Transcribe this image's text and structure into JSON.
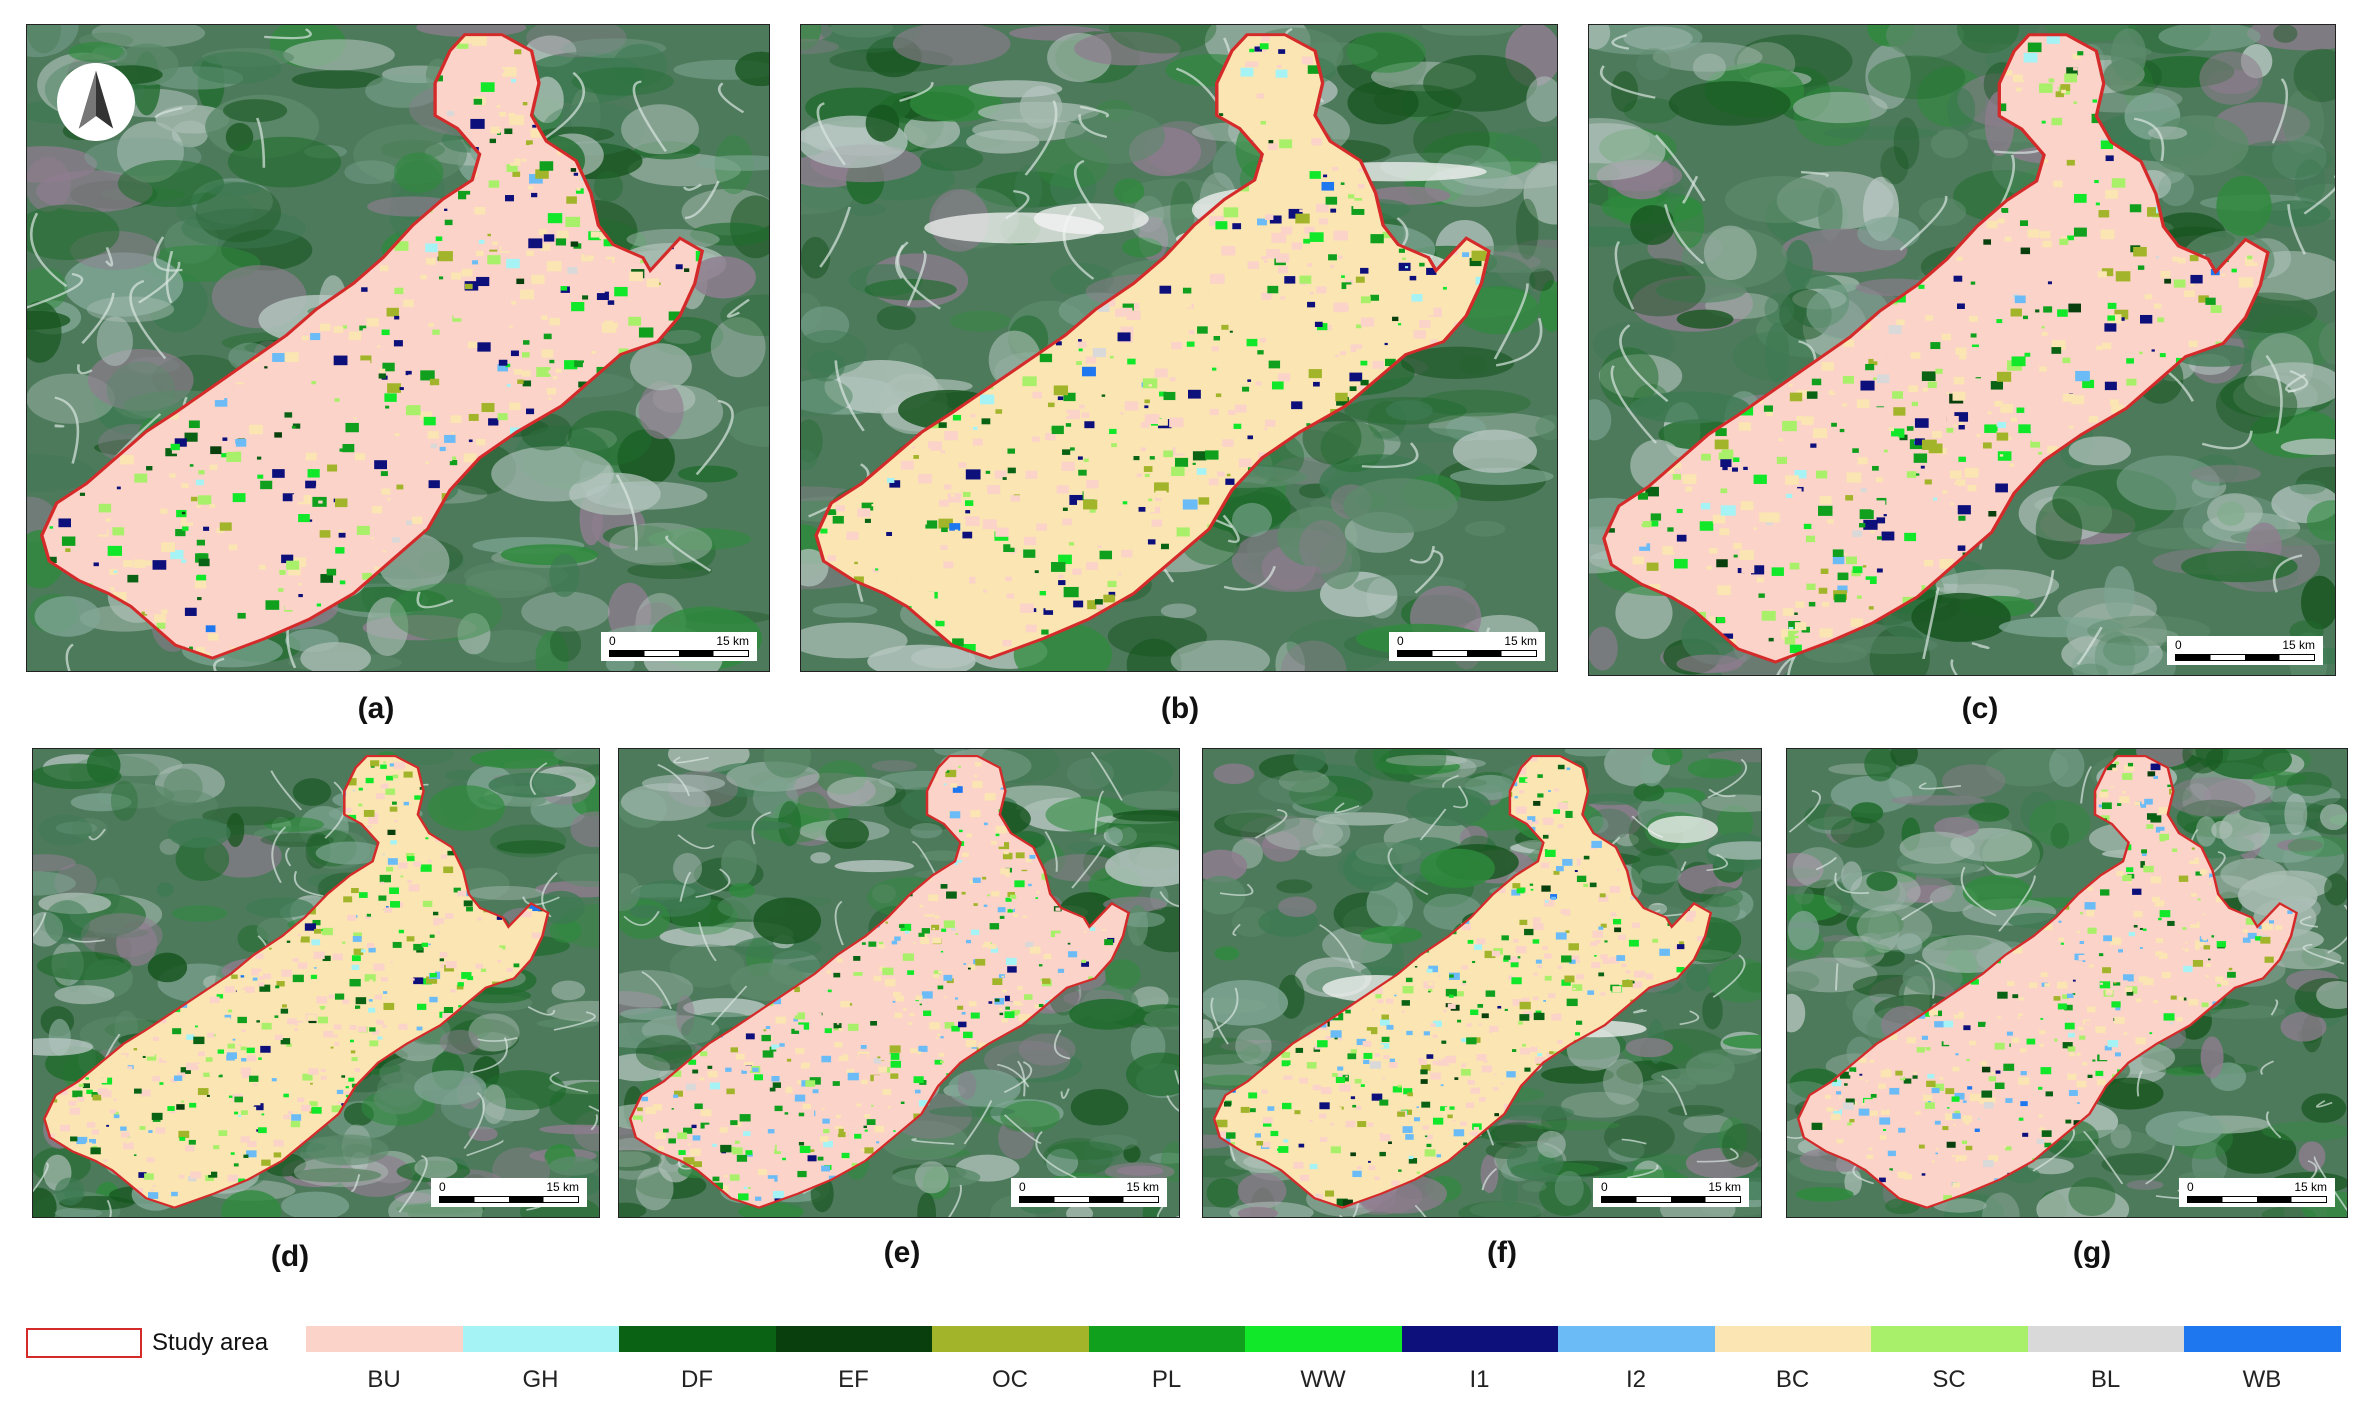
{
  "panels": [
    {
      "id": "a",
      "caption": "(a)",
      "scale": {
        "zero": "0",
        "end": "15 km"
      }
    },
    {
      "id": "b",
      "caption": "(b)",
      "scale": {
        "zero": "0",
        "end": "15 km"
      }
    },
    {
      "id": "c",
      "caption": "(c)",
      "scale": {
        "zero": "0",
        "end": "15 km"
      }
    },
    {
      "id": "d",
      "caption": "(d)",
      "scale": {
        "zero": "0",
        "end": "15 km"
      }
    },
    {
      "id": "e",
      "caption": "(e)",
      "scale": {
        "zero": "0",
        "end": "15 km"
      }
    },
    {
      "id": "f",
      "caption": "(f)",
      "scale": {
        "zero": "0",
        "end": "15 km"
      }
    },
    {
      "id": "g",
      "caption": "(g)",
      "scale": {
        "zero": "0",
        "end": "15 km"
      }
    }
  ],
  "legend": {
    "study_area": "Study area",
    "study_area_color": "#d42a2a",
    "classes": [
      {
        "code": "BU",
        "color": "#fbd3c9"
      },
      {
        "code": "GH",
        "color": "#a6f3f6"
      },
      {
        "code": "DF",
        "color": "#0a6314"
      },
      {
        "code": "EF",
        "color": "#083f0c"
      },
      {
        "code": "OC",
        "color": "#a2b42a"
      },
      {
        "code": "PL",
        "color": "#10a01e"
      },
      {
        "code": "WW",
        "color": "#10e829"
      },
      {
        "code": "I1",
        "color": "#0d0f7a"
      },
      {
        "code": "I2",
        "color": "#6bbcf6"
      },
      {
        "code": "BC",
        "color": "#fae5b3"
      },
      {
        "code": "SC",
        "color": "#a8f069"
      },
      {
        "code": "BL",
        "color": "#d9d9d9"
      },
      {
        "code": "WB",
        "color": "#1f77f0"
      }
    ]
  },
  "north_arrow": "north-arrow-icon"
}
